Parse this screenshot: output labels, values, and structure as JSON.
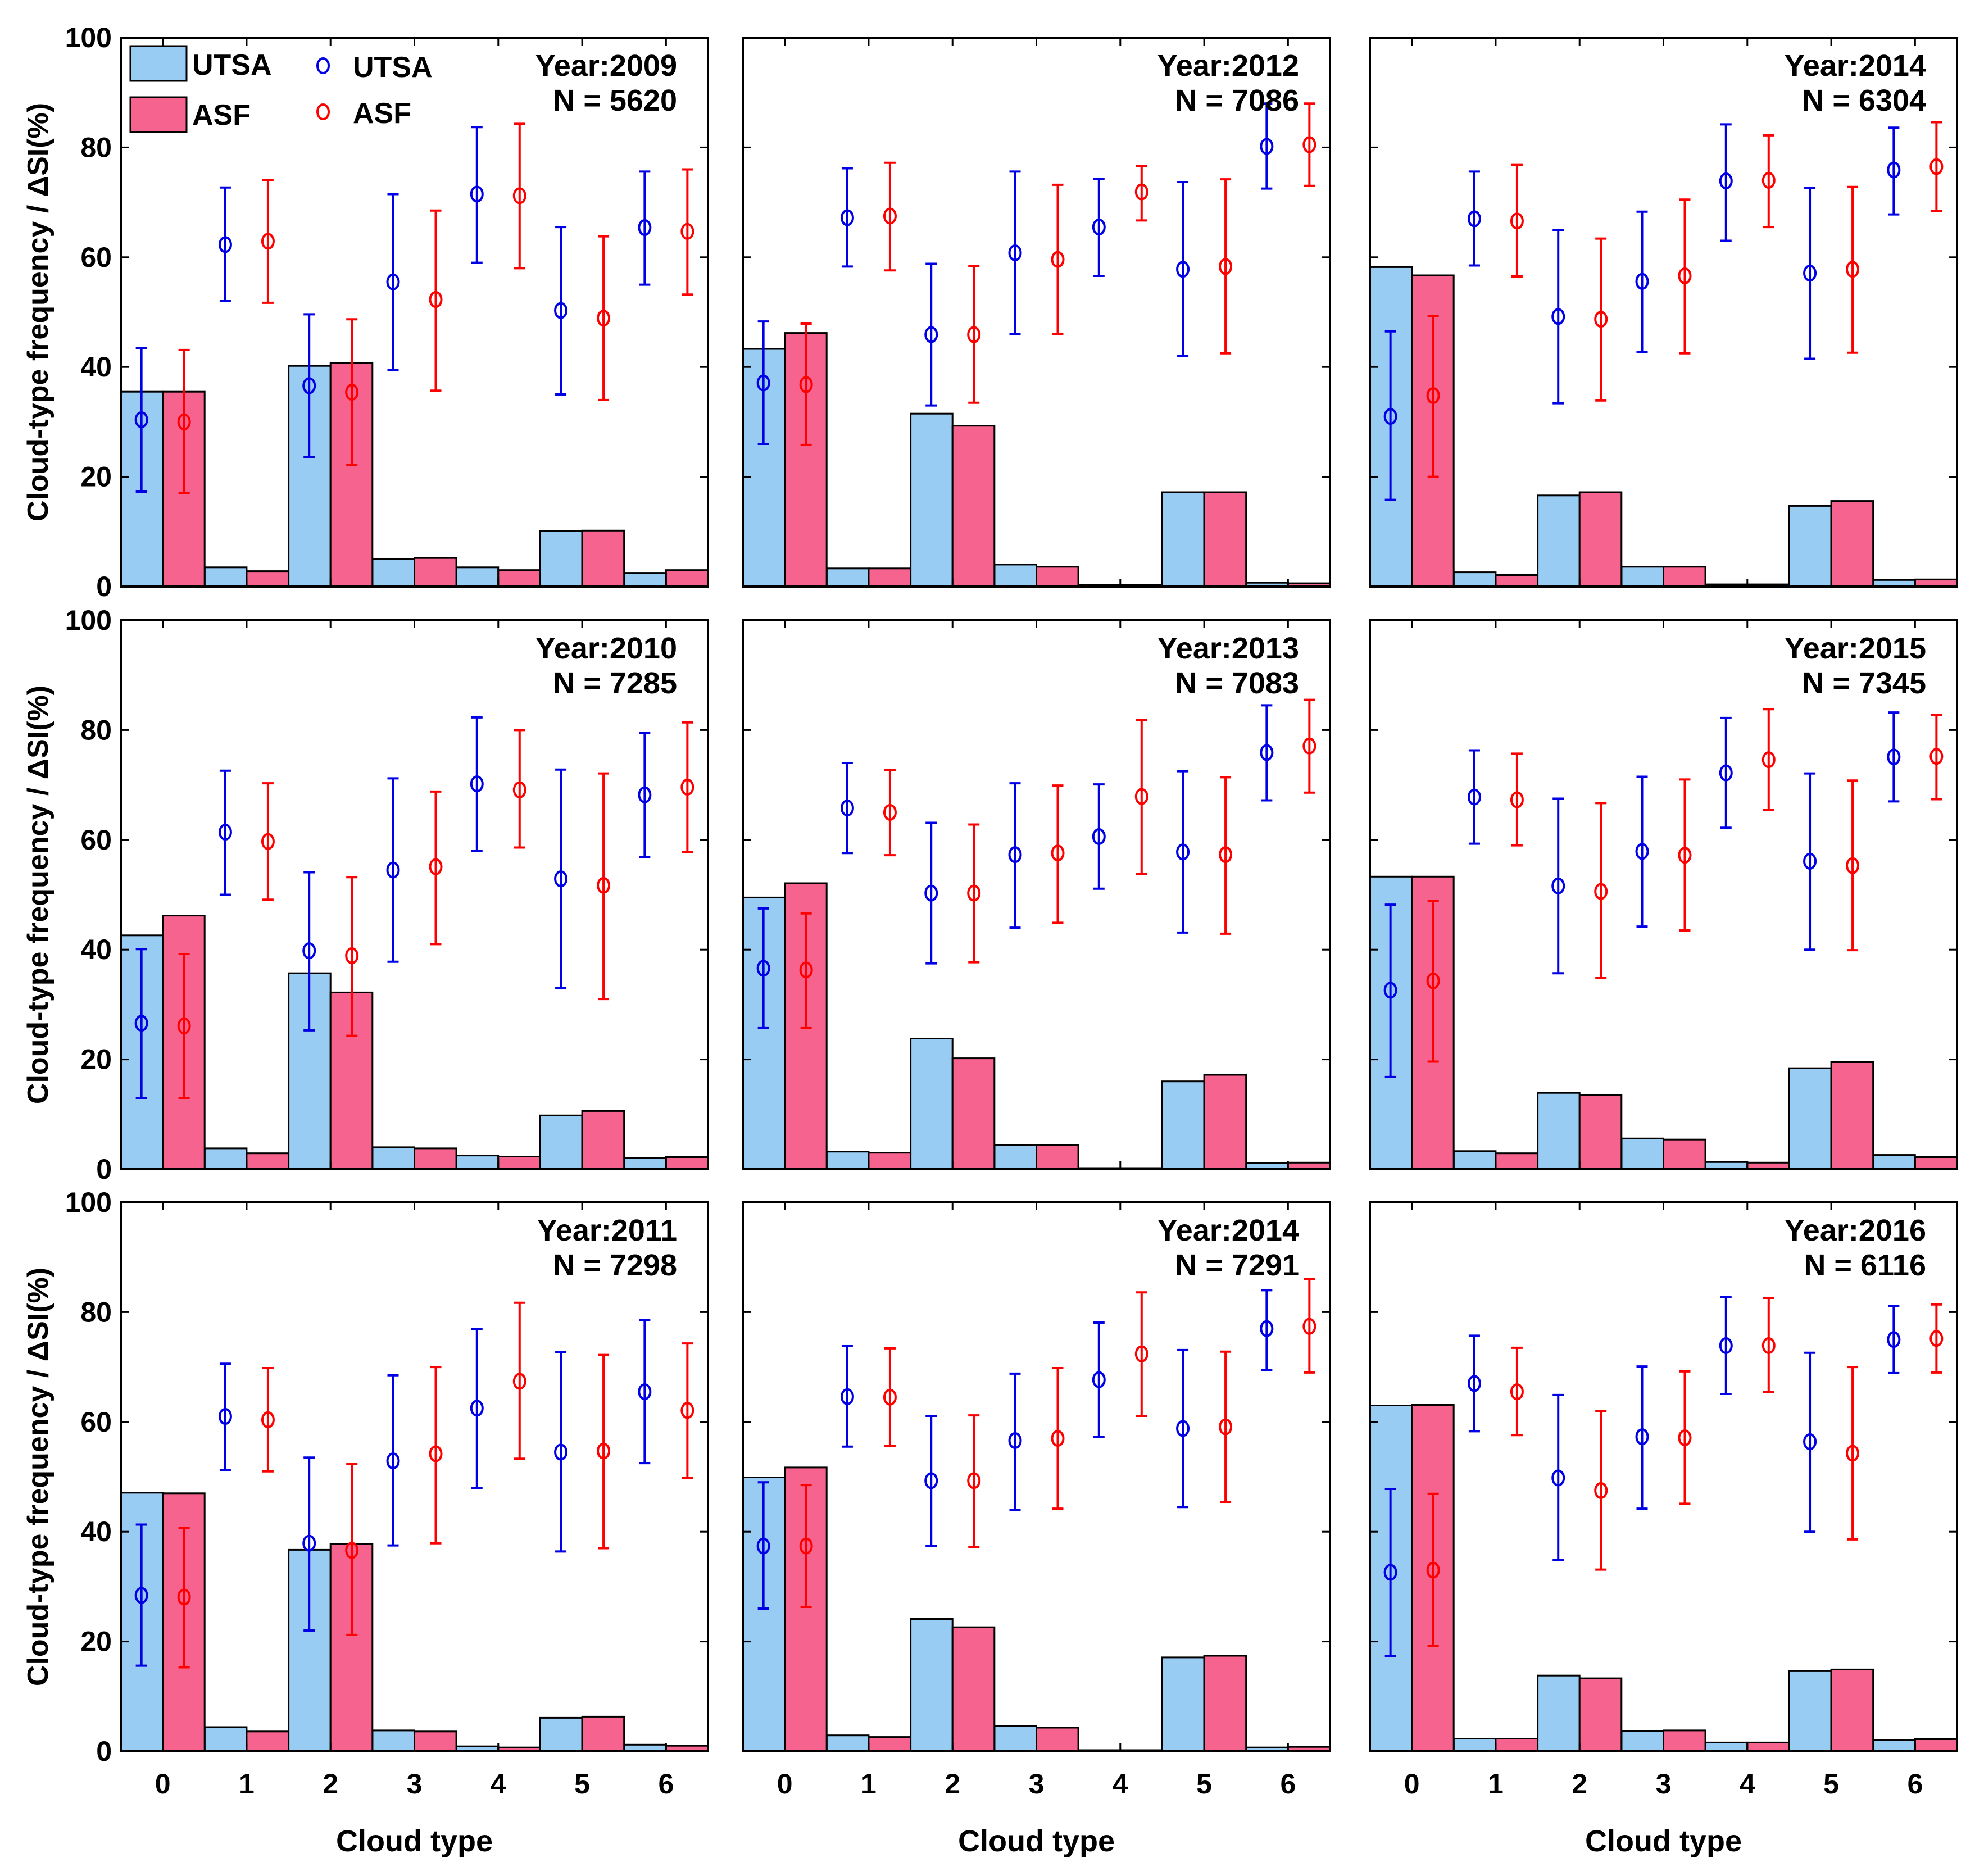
{
  "colors": {
    "utsa_bar": "#99ccf2",
    "asf_bar": "#f7638f",
    "utsa_marker": "#0000e6",
    "asf_marker": "#ff0000"
  },
  "legend": {
    "bar_utsa": "UTSA",
    "bar_asf": "ASF",
    "marker_utsa": "UTSA",
    "marker_asf": "ASF"
  },
  "axis": {
    "xlabel": "Cloud type",
    "ylabel": "Cloud-type frequency / ΔSI(%)",
    "yticks": [
      0,
      20,
      40,
      60,
      80,
      100
    ],
    "xticks": [
      0,
      1,
      2,
      3,
      4,
      5,
      6
    ],
    "ylim": [
      0,
      100
    ]
  },
  "chart_data": [
    {
      "type": "bar",
      "year_label": "Year:2009",
      "n_label": "N = 5620",
      "categories": [
        0,
        1,
        2,
        3,
        4,
        5,
        6
      ],
      "series": [
        {
          "name": "UTSA",
          "values": [
            35.5,
            3.5,
            40.2,
            5.0,
            3.5,
            10.1,
            2.5
          ],
          "si_mean": [
            30.4,
            62.3,
            36.6,
            55.5,
            71.5,
            50.3,
            65.4
          ],
          "si_lo": [
            17.3,
            52.0,
            23.6,
            39.5,
            59.0,
            35.0,
            55.0
          ],
          "si_hi": [
            43.4,
            72.7,
            49.6,
            71.5,
            83.7,
            65.5,
            75.6
          ]
        },
        {
          "name": "ASF",
          "values": [
            35.5,
            2.8,
            40.7,
            5.2,
            3.0,
            10.2,
            3.0
          ],
          "si_mean": [
            30.0,
            62.9,
            35.4,
            52.3,
            71.2,
            48.9,
            64.7
          ],
          "si_lo": [
            17.0,
            51.7,
            22.2,
            35.7,
            58.0,
            34.0,
            53.2
          ],
          "si_hi": [
            43.1,
            74.1,
            48.7,
            68.5,
            84.3,
            63.8,
            76.0
          ]
        }
      ]
    },
    {
      "type": "bar",
      "year_label": "Year:2012",
      "n_label": "N = 7086",
      "categories": [
        0,
        1,
        2,
        3,
        4,
        5,
        6
      ],
      "series": [
        {
          "name": "UTSA",
          "values": [
            43.3,
            3.3,
            31.5,
            4.0,
            0.3,
            17.2,
            0.7
          ],
          "si_mean": [
            37.1,
            67.2,
            45.9,
            60.8,
            65.5,
            57.8,
            80.2
          ],
          "si_lo": [
            26.0,
            58.3,
            33.0,
            46.0,
            56.6,
            42.0,
            72.5
          ],
          "si_hi": [
            48.3,
            76.2,
            58.8,
            75.6,
            74.3,
            73.7,
            88.0
          ]
        },
        {
          "name": "ASF",
          "values": [
            46.2,
            3.3,
            29.3,
            3.6,
            0.3,
            17.2,
            0.6
          ],
          "si_mean": [
            36.8,
            67.5,
            45.9,
            59.6,
            71.9,
            58.3,
            80.5
          ],
          "si_lo": [
            25.8,
            57.6,
            33.5,
            46.0,
            66.7,
            42.5,
            73.0
          ],
          "si_hi": [
            47.9,
            77.2,
            58.4,
            73.2,
            76.6,
            74.2,
            88.0
          ]
        }
      ]
    },
    {
      "type": "bar",
      "year_label": "Year:2014",
      "n_label": "N = 6304",
      "categories": [
        0,
        1,
        2,
        3,
        4,
        5,
        6
      ],
      "series": [
        {
          "name": "UTSA",
          "values": [
            58.2,
            2.6,
            16.6,
            3.6,
            0.4,
            14.7,
            1.2
          ],
          "si_mean": [
            31.0,
            67.0,
            49.2,
            55.6,
            73.9,
            57.1,
            75.9
          ],
          "si_lo": [
            15.8,
            58.5,
            33.4,
            42.7,
            63.0,
            41.5,
            67.8
          ],
          "si_hi": [
            46.5,
            75.6,
            65.0,
            68.3,
            84.2,
            72.6,
            83.6
          ]
        },
        {
          "name": "ASF",
          "values": [
            56.7,
            2.1,
            17.2,
            3.6,
            0.4,
            15.6,
            1.3
          ],
          "si_mean": [
            34.8,
            66.6,
            48.7,
            56.6,
            74.0,
            57.8,
            76.5
          ],
          "si_lo": [
            20.0,
            56.5,
            33.9,
            42.5,
            65.5,
            42.6,
            68.4
          ],
          "si_hi": [
            49.3,
            76.8,
            63.4,
            70.5,
            82.2,
            72.8,
            84.6
          ]
        }
      ]
    },
    {
      "type": "bar",
      "year_label": "Year:2010",
      "n_label": "N = 7285",
      "categories": [
        0,
        1,
        2,
        3,
        4,
        5,
        6
      ],
      "series": [
        {
          "name": "UTSA",
          "values": [
            42.6,
            3.8,
            35.7,
            4.0,
            2.5,
            9.8,
            2.0
          ],
          "si_mean": [
            26.6,
            61.4,
            39.8,
            54.5,
            70.2,
            52.9,
            68.2
          ],
          "si_lo": [
            13.0,
            50.0,
            25.3,
            37.8,
            58.0,
            33.0,
            56.9
          ],
          "si_hi": [
            40.1,
            72.6,
            54.1,
            71.2,
            82.3,
            72.8,
            79.5
          ]
        },
        {
          "name": "ASF",
          "values": [
            46.2,
            2.9,
            32.2,
            3.8,
            2.3,
            10.6,
            2.2
          ],
          "si_mean": [
            26.1,
            59.7,
            38.9,
            55.1,
            69.1,
            51.7,
            69.6
          ],
          "si_lo": [
            13.0,
            49.1,
            24.3,
            41.0,
            58.6,
            31.0,
            57.8
          ],
          "si_hi": [
            39.2,
            70.3,
            53.2,
            68.8,
            80.0,
            72.1,
            81.4
          ]
        }
      ]
    },
    {
      "type": "bar",
      "year_label": "Year:2013",
      "n_label": "N = 7083",
      "categories": [
        0,
        1,
        2,
        3,
        4,
        5,
        6
      ],
      "series": [
        {
          "name": "UTSA",
          "values": [
            49.5,
            3.2,
            23.8,
            4.4,
            0.2,
            16.0,
            1.1
          ],
          "si_mean": [
            36.6,
            65.8,
            50.3,
            57.3,
            60.6,
            57.8,
            75.9
          ],
          "si_lo": [
            25.7,
            57.6,
            37.5,
            44.0,
            51.1,
            43.1,
            67.2
          ],
          "si_hi": [
            47.5,
            74.0,
            63.1,
            70.3,
            70.1,
            72.5,
            84.5
          ]
        },
        {
          "name": "ASF",
          "values": [
            52.1,
            3.0,
            20.2,
            4.4,
            0.2,
            17.2,
            1.2
          ],
          "si_mean": [
            36.3,
            65.0,
            50.3,
            57.6,
            67.9,
            57.3,
            77.1
          ],
          "si_lo": [
            25.7,
            57.2,
            37.7,
            44.9,
            53.8,
            42.9,
            68.6
          ],
          "si_hi": [
            46.6,
            72.7,
            62.8,
            69.9,
            81.8,
            71.4,
            85.5
          ]
        }
      ]
    },
    {
      "type": "bar",
      "year_label": "Year:2015",
      "n_label": "N = 7345",
      "categories": [
        0,
        1,
        2,
        3,
        4,
        5,
        6
      ],
      "series": [
        {
          "name": "UTSA",
          "values": [
            53.3,
            3.3,
            13.9,
            5.6,
            1.3,
            18.4,
            2.6
          ],
          "si_mean": [
            32.6,
            67.8,
            51.6,
            57.9,
            72.2,
            56.1,
            75.1
          ],
          "si_lo": [
            16.8,
            59.3,
            35.7,
            44.2,
            62.2,
            40.0,
            67.0
          ],
          "si_hi": [
            48.2,
            76.3,
            67.5,
            71.5,
            82.2,
            72.1,
            83.2
          ]
        },
        {
          "name": "ASF",
          "values": [
            53.3,
            2.9,
            13.5,
            5.4,
            1.2,
            19.5,
            2.2
          ],
          "si_mean": [
            34.3,
            67.3,
            50.6,
            57.2,
            74.6,
            55.3,
            75.2
          ],
          "si_lo": [
            19.6,
            59.0,
            34.8,
            43.5,
            65.4,
            39.9,
            67.4
          ],
          "si_hi": [
            48.9,
            75.7,
            66.7,
            71.0,
            83.8,
            70.8,
            82.8
          ]
        }
      ]
    },
    {
      "type": "bar",
      "year_label": "Year:2011",
      "n_label": "N = 7298",
      "categories": [
        0,
        1,
        2,
        3,
        4,
        5,
        6
      ],
      "series": [
        {
          "name": "UTSA",
          "values": [
            47.1,
            4.4,
            36.7,
            3.8,
            0.9,
            6.1,
            1.2
          ],
          "si_mean": [
            28.4,
            61.0,
            37.9,
            52.9,
            62.5,
            54.5,
            65.5
          ],
          "si_lo": [
            15.6,
            51.2,
            22.0,
            37.5,
            48.0,
            36.4,
            52.5
          ],
          "si_hi": [
            41.3,
            70.6,
            53.5,
            68.5,
            76.9,
            72.7,
            78.6
          ]
        },
        {
          "name": "ASF",
          "values": [
            47.0,
            3.6,
            37.8,
            3.6,
            0.7,
            6.3,
            1.0
          ],
          "si_mean": [
            28.1,
            60.4,
            36.6,
            54.2,
            67.4,
            54.7,
            62.1
          ],
          "si_lo": [
            15.3,
            51.0,
            21.2,
            37.9,
            53.3,
            37.0,
            49.8
          ],
          "si_hi": [
            40.7,
            69.8,
            52.3,
            70.0,
            81.7,
            72.2,
            74.3
          ]
        }
      ]
    },
    {
      "type": "bar",
      "year_label": "Year:2014",
      "n_label": "N = 7291",
      "categories": [
        0,
        1,
        2,
        3,
        4,
        5,
        6
      ],
      "series": [
        {
          "name": "UTSA",
          "values": [
            49.9,
            2.9,
            24.1,
            4.6,
            0.2,
            17.1,
            0.7
          ],
          "si_mean": [
            37.4,
            64.6,
            49.3,
            56.6,
            67.7,
            58.8,
            77.0
          ],
          "si_lo": [
            26.0,
            55.5,
            37.4,
            44.0,
            57.3,
            44.5,
            69.5
          ],
          "si_hi": [
            49.0,
            73.8,
            61.1,
            68.8,
            78.1,
            73.1,
            84.0
          ]
        },
        {
          "name": "ASF",
          "values": [
            51.7,
            2.6,
            22.6,
            4.3,
            0.2,
            17.4,
            0.8
          ],
          "si_mean": [
            37.4,
            64.5,
            49.3,
            57.0,
            72.4,
            59.1,
            77.4
          ],
          "si_lo": [
            26.3,
            55.6,
            37.2,
            44.2,
            61.1,
            45.4,
            69.0
          ],
          "si_hi": [
            48.5,
            73.4,
            61.2,
            69.8,
            83.6,
            72.8,
            86.0
          ]
        }
      ]
    },
    {
      "type": "bar",
      "year_label": "Year:2016",
      "n_label": "N = 6116",
      "categories": [
        0,
        1,
        2,
        3,
        4,
        5,
        6
      ],
      "series": [
        {
          "name": "UTSA",
          "values": [
            63.0,
            2.3,
            13.8,
            3.7,
            1.6,
            14.6,
            2.1
          ],
          "si_mean": [
            32.6,
            67.0,
            49.8,
            57.3,
            73.9,
            56.4,
            75.0
          ],
          "si_lo": [
            17.4,
            58.3,
            34.9,
            44.2,
            65.1,
            40.0,
            68.9
          ],
          "si_hi": [
            47.8,
            75.7,
            64.9,
            70.1,
            82.7,
            72.6,
            81.1
          ]
        },
        {
          "name": "ASF",
          "values": [
            63.1,
            2.3,
            13.3,
            3.8,
            1.6,
            14.9,
            2.2
          ],
          "si_mean": [
            33.0,
            65.5,
            47.5,
            57.1,
            73.9,
            54.3,
            75.2
          ],
          "si_lo": [
            19.2,
            57.6,
            33.1,
            45.1,
            65.4,
            38.6,
            69.0
          ],
          "si_hi": [
            46.9,
            73.5,
            62.0,
            69.2,
            82.6,
            70.0,
            81.4
          ]
        }
      ]
    }
  ]
}
